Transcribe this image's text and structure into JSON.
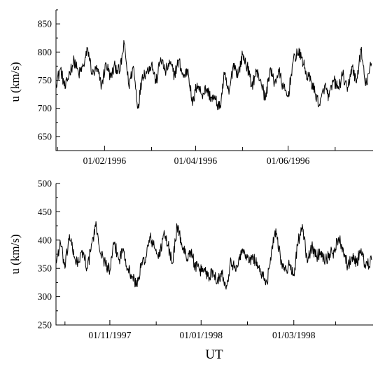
{
  "figure": {
    "xlabel": "UT"
  },
  "chart_data": [
    {
      "type": "line",
      "ylabel": "u (km/s)",
      "ylim": [
        625,
        875
      ],
      "xlim": [
        "1995-12-14",
        "1996-07-10"
      ],
      "yticks": [
        650,
        700,
        750,
        800,
        850
      ],
      "yticks_minor": [
        625,
        675,
        725,
        775,
        825,
        875
      ],
      "xticks_major": [
        {
          "date": "1996-01-15",
          "label": "01/02/1996"
        },
        {
          "date": "1996-03-15",
          "label": "01/04/1996"
        },
        {
          "date": "1996-05-15",
          "label": "01/06/1996"
        }
      ],
      "xticks_minor": [
        "1995-12-15",
        "1996-02-15",
        "1996-04-15",
        "1996-06-15"
      ],
      "series": [
        {
          "x": [
            "1995-12-14",
            "1995-12-17",
            "1995-12-20",
            "1995-12-23",
            "1995-12-26",
            "1995-12-29",
            "1996-01-01",
            "1996-01-04",
            "1996-01-07",
            "1996-01-10",
            "1996-01-13",
            "1996-01-16",
            "1996-01-19",
            "1996-01-22",
            "1996-01-25",
            "1996-01-28",
            "1996-01-31",
            "1996-02-03",
            "1996-02-06",
            "1996-02-09",
            "1996-02-12",
            "1996-02-15",
            "1996-02-18",
            "1996-02-21",
            "1996-02-24",
            "1996-02-27",
            "1996-03-01",
            "1996-03-04",
            "1996-03-07",
            "1996-03-10",
            "1996-03-13",
            "1996-03-16",
            "1996-03-19",
            "1996-03-22",
            "1996-03-25",
            "1996-03-28",
            "1996-03-31",
            "1996-04-03",
            "1996-04-06",
            "1996-04-09",
            "1996-04-12",
            "1996-04-15",
            "1996-04-18",
            "1996-04-21",
            "1996-04-24",
            "1996-04-27",
            "1996-04-30",
            "1996-05-03",
            "1996-05-06",
            "1996-05-09",
            "1996-05-12",
            "1996-05-15",
            "1996-05-18",
            "1996-05-21",
            "1996-05-24",
            "1996-05-27",
            "1996-05-30",
            "1996-06-02",
            "1996-06-05",
            "1996-06-08",
            "1996-06-11",
            "1996-06-14",
            "1996-06-17",
            "1996-06-20",
            "1996-06-23",
            "1996-06-26",
            "1996-06-29",
            "1996-07-02",
            "1996-07-05",
            "1996-07-09"
          ],
          "values": [
            745,
            770,
            735,
            765,
            785,
            760,
            775,
            805,
            760,
            770,
            740,
            780,
            755,
            775,
            765,
            815,
            740,
            775,
            700,
            760,
            765,
            780,
            745,
            790,
            765,
            780,
            760,
            785,
            755,
            770,
            705,
            745,
            725,
            735,
            720,
            715,
            700,
            760,
            725,
            780,
            760,
            795,
            775,
            740,
            765,
            750,
            715,
            770,
            745,
            765,
            735,
            720,
            780,
            800,
            790,
            760,
            750,
            725,
            705,
            740,
            720,
            750,
            735,
            760,
            730,
            775,
            745,
            805,
            740,
            780
          ]
        }
      ]
    },
    {
      "type": "line",
      "ylabel": "u (km/s)",
      "ylim": [
        250,
        500
      ],
      "xlim": [
        "1997-09-19",
        "1998-04-19"
      ],
      "yticks": [
        250,
        300,
        350,
        400,
        450,
        500
      ],
      "yticks_minor": [
        275,
        325,
        375,
        425,
        475
      ],
      "xticks_major": [
        {
          "date": "1997-10-25",
          "label": "01/11/1997"
        },
        {
          "date": "1997-12-25",
          "label": "01/01/1998"
        },
        {
          "date": "1998-02-25",
          "label": "01/03/1998"
        }
      ],
      "xticks_minor": [
        "1997-09-25",
        "1997-11-25",
        "1998-01-25",
        "1998-03-25"
      ],
      "series": [
        {
          "x": [
            "1997-09-19",
            "1997-09-22",
            "1997-09-25",
            "1997-09-28",
            "1997-10-01",
            "1997-10-04",
            "1997-10-07",
            "1997-10-10",
            "1997-10-13",
            "1997-10-16",
            "1997-10-19",
            "1997-10-22",
            "1997-10-25",
            "1997-10-28",
            "1997-10-31",
            "1997-11-03",
            "1997-11-06",
            "1997-11-09",
            "1997-11-12",
            "1997-11-15",
            "1997-11-18",
            "1997-11-21",
            "1997-11-24",
            "1997-11-27",
            "1997-11-30",
            "1997-12-03",
            "1997-12-06",
            "1997-12-09",
            "1997-12-12",
            "1997-12-15",
            "1997-12-18",
            "1997-12-21",
            "1997-12-24",
            "1997-12-27",
            "1997-12-30",
            "1998-01-02",
            "1998-01-05",
            "1998-01-08",
            "1998-01-11",
            "1998-01-14",
            "1998-01-17",
            "1998-01-20",
            "1998-01-23",
            "1998-01-26",
            "1998-01-29",
            "1998-02-01",
            "1998-02-04",
            "1998-02-07",
            "1998-02-10",
            "1998-02-13",
            "1998-02-16",
            "1998-02-19",
            "1998-02-22",
            "1998-02-25",
            "1998-02-28",
            "1998-03-03",
            "1998-03-06",
            "1998-03-09",
            "1998-03-12",
            "1998-03-15",
            "1998-03-18",
            "1998-03-21",
            "1998-03-24",
            "1998-03-27",
            "1998-03-30",
            "1998-04-02",
            "1998-04-05",
            "1998-04-08",
            "1998-04-11",
            "1998-04-14",
            "1998-04-18"
          ],
          "values": [
            360,
            395,
            350,
            410,
            370,
            360,
            380,
            350,
            395,
            425,
            375,
            360,
            345,
            395,
            365,
            385,
            350,
            335,
            320,
            355,
            370,
            405,
            385,
            370,
            410,
            390,
            360,
            425,
            395,
            370,
            380,
            355,
            345,
            350,
            335,
            345,
            330,
            340,
            320,
            365,
            345,
            375,
            380,
            360,
            370,
            355,
            335,
            325,
            380,
            420,
            370,
            345,
            355,
            340,
            400,
            420,
            360,
            390,
            370,
            380,
            365,
            375,
            380,
            405,
            385,
            355,
            370,
            360,
            385,
            350,
            365
          ]
        }
      ]
    }
  ]
}
